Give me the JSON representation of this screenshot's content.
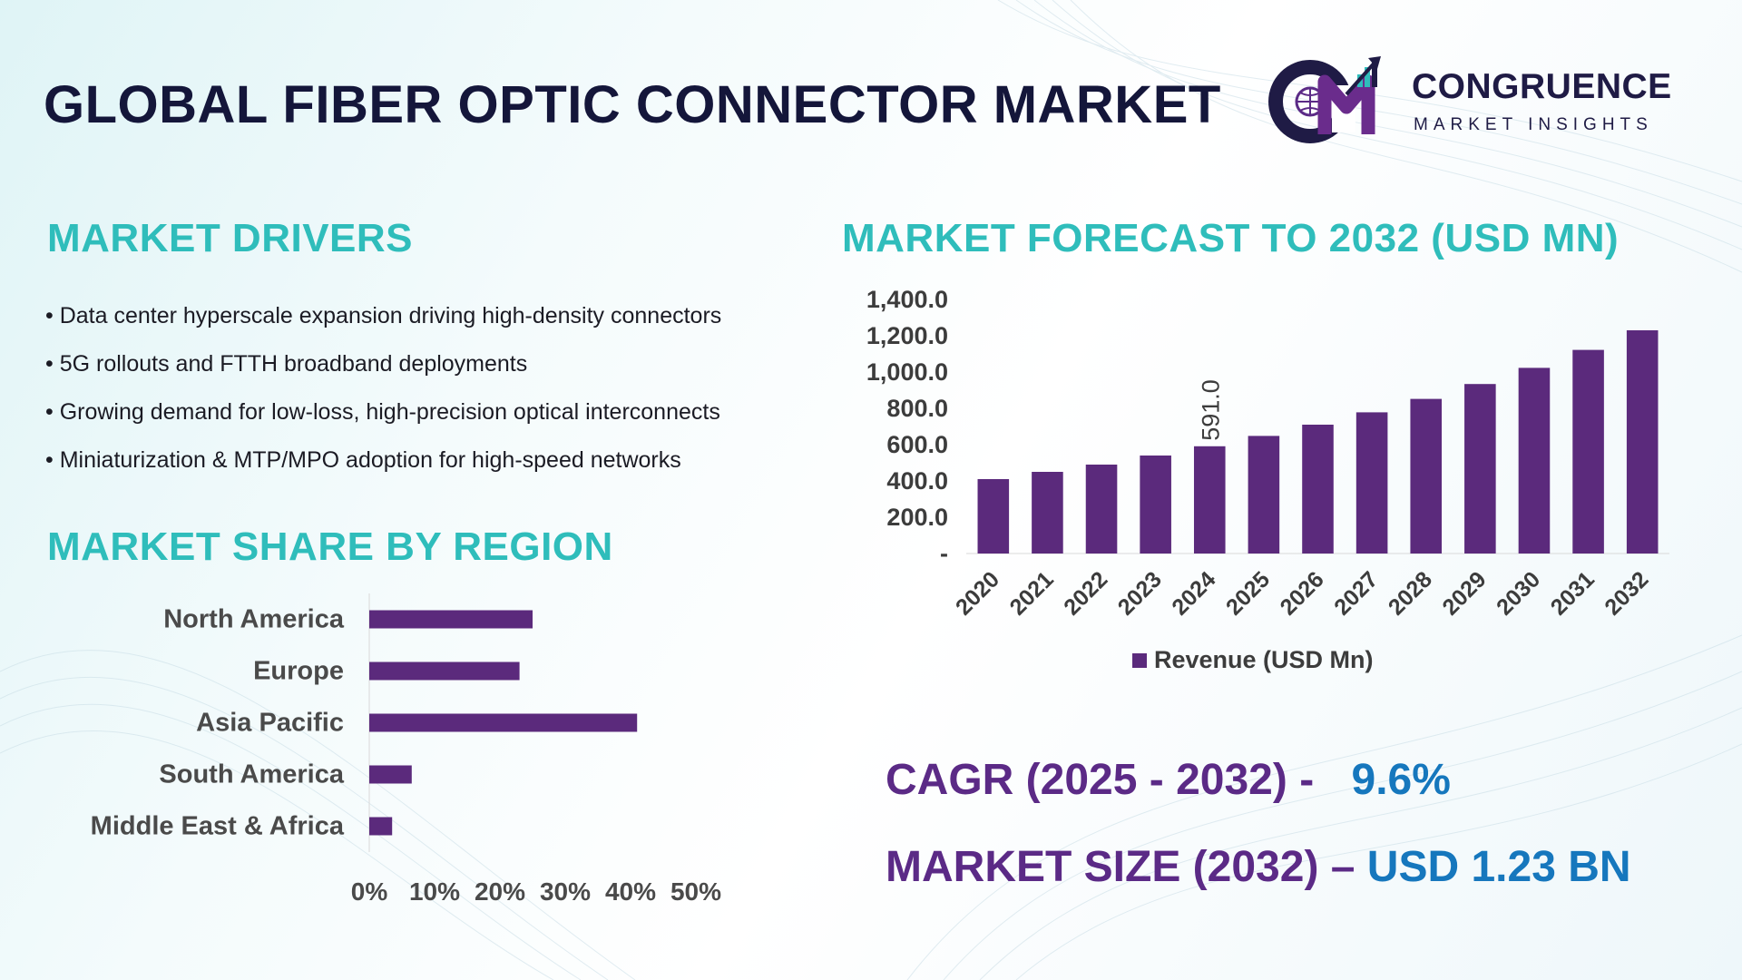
{
  "header": {
    "title": "GLOBAL FIBER OPTIC CONNECTOR MARKET",
    "logo": {
      "monogram": "CM",
      "name": "CONGRUENCE",
      "tagline": "MARKET INSIGHTS"
    }
  },
  "drivers": {
    "title": "MARKET DRIVERS",
    "items": [
      "Data center hyperscale expansion driving high-density connectors",
      "5G rollouts and FTTH broadband deployments",
      "Growing demand for low-loss, high-precision optical interconnects",
      "Miniaturization & MTP/MPO adoption for high-speed networks"
    ]
  },
  "region": {
    "title": "MARKET SHARE BY REGION"
  },
  "forecast": {
    "title": "MARKET FORECAST TO 2032 (USD MN)"
  },
  "kpis": {
    "cagr_label": "CAGR (2025 - 2032) -",
    "cagr_value": "9.6%",
    "size_label": "MARKET SIZE (2032) –",
    "size_value": "USD 1.23 BN"
  },
  "colors": {
    "bar": "#5b2a7c",
    "teal": "#2fbdbb",
    "navy": "#14163a",
    "purple_text": "#5b2a86",
    "blue_text": "#1677bd"
  },
  "chart_data": [
    {
      "type": "bar",
      "orientation": "vertical",
      "title": "MARKET FORECAST TO 2032 (USD MN)",
      "categories": [
        "2020",
        "2021",
        "2022",
        "2023",
        "2024",
        "2025",
        "2026",
        "2027",
        "2028",
        "2029",
        "2030",
        "2031",
        "2032"
      ],
      "series": [
        {
          "name": "Revenue (USD Mn)",
          "values": [
            410,
            450,
            490,
            540,
            591,
            648,
            710,
            778,
            852,
            934,
            1023,
            1122,
            1230
          ]
        }
      ],
      "data_labels": [
        {
          "category": "2024",
          "text": "591.0"
        }
      ],
      "yticks": [
        "-",
        "200.0",
        "400.0",
        "600.0",
        "800.0",
        "1,000.0",
        "1,200.0",
        "1,400.0"
      ],
      "ylim": [
        0,
        1400
      ],
      "legend": "bottom",
      "grid": false
    },
    {
      "type": "bar",
      "orientation": "horizontal",
      "title": "MARKET SHARE BY REGION",
      "categories": [
        "North America",
        "Europe",
        "Asia Pacific",
        "South America",
        "Middle East & Africa"
      ],
      "values": [
        25,
        23,
        41,
        6.5,
        3.5
      ],
      "unit": "%",
      "xticks": [
        "0%",
        "10%",
        "20%",
        "30%",
        "40%",
        "50%"
      ],
      "xlim": [
        0,
        50
      ],
      "grid": false
    }
  ]
}
